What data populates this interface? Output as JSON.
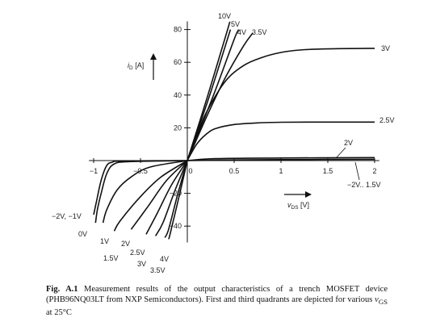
{
  "chart_data": {
    "type": "line",
    "title": "",
    "xlabel": {
      "main": "v",
      "sub": "DS",
      "unit": " [V]"
    },
    "ylabel": {
      "main": "i",
      "sub": "D",
      "unit": " [A]"
    },
    "xlim": [
      -1,
      2
    ],
    "ylim": [
      -50,
      85
    ],
    "x_ticks": [
      -1,
      -0.5,
      0,
      0.5,
      1,
      1.5,
      2
    ],
    "x_tick_labels": [
      "−1",
      "−0.5",
      "0",
      "0.5",
      "1",
      "1.5",
      "2"
    ],
    "y_ticks": [
      -40,
      -20,
      20,
      40,
      60,
      80
    ],
    "y_tick_labels": [
      "−40",
      "−20",
      "20",
      "40",
      "60",
      "80"
    ],
    "grid": false,
    "first_quadrant": [
      {
        "name": "10V",
        "points": [
          [
            0,
            0
          ],
          [
            0.22,
            40
          ],
          [
            0.43,
            80
          ],
          [
            0.45,
            84
          ]
        ]
      },
      {
        "name": "5V",
        "points": [
          [
            0,
            0
          ],
          [
            0.24,
            40
          ],
          [
            0.46,
            80
          ]
        ]
      },
      {
        "name": "4V",
        "points": [
          [
            0,
            0
          ],
          [
            0.28,
            40
          ],
          [
            0.5,
            74
          ],
          [
            0.55,
            80
          ]
        ]
      },
      {
        "name": "3.5V",
        "points": [
          [
            0,
            0
          ],
          [
            0.2,
            26
          ],
          [
            0.4,
            50
          ],
          [
            0.6,
            70
          ],
          [
            0.7,
            78
          ]
        ]
      },
      {
        "name": "3V",
        "points": [
          [
            0,
            0
          ],
          [
            0.1,
            15
          ],
          [
            0.2,
            29
          ],
          [
            0.4,
            48
          ],
          [
            0.6,
            58
          ],
          [
            0.8,
            63
          ],
          [
            1.0,
            66
          ],
          [
            1.2,
            67.5
          ],
          [
            1.5,
            68.2
          ],
          [
            2.0,
            68.5
          ]
        ]
      },
      {
        "name": "2.5V",
        "points": [
          [
            0,
            0
          ],
          [
            0.1,
            10
          ],
          [
            0.2,
            16
          ],
          [
            0.3,
            19.5
          ],
          [
            0.5,
            22
          ],
          [
            0.75,
            23
          ],
          [
            1.0,
            23.4
          ],
          [
            1.5,
            23.5
          ],
          [
            2.0,
            23.5
          ]
        ]
      },
      {
        "name": "2V",
        "points": [
          [
            0,
            0
          ],
          [
            0.3,
            1.2
          ],
          [
            1.0,
            1.6
          ],
          [
            2.0,
            1.8
          ]
        ]
      },
      {
        "name": "−2V.. 1.5V",
        "points": [
          [
            0,
            0
          ],
          [
            0.5,
            0.4
          ],
          [
            1.0,
            0.6
          ],
          [
            2.0,
            0.8
          ]
        ]
      }
    ],
    "third_quadrant": [
      {
        "name": "4V",
        "points": [
          [
            0,
            0
          ],
          [
            -0.08,
            -20
          ],
          [
            -0.18,
            -44
          ],
          [
            -0.2,
            -48
          ]
        ]
      },
      {
        "name": "3.5V",
        "points": [
          [
            0,
            0
          ],
          [
            -0.1,
            -20
          ],
          [
            -0.2,
            -42
          ],
          [
            -0.24,
            -47
          ]
        ]
      },
      {
        "name": "3V",
        "points": [
          [
            0,
            0
          ],
          [
            -0.13,
            -18
          ],
          [
            -0.26,
            -38
          ],
          [
            -0.34,
            -46
          ]
        ]
      },
      {
        "name": "2.5V",
        "points": [
          [
            0,
            0
          ],
          [
            -0.17,
            -15
          ],
          [
            -0.32,
            -32
          ],
          [
            -0.44,
            -45
          ]
        ]
      },
      {
        "name": "2V",
        "points": [
          [
            0,
            0
          ],
          [
            -0.22,
            -12
          ],
          [
            -0.42,
            -28
          ],
          [
            -0.6,
            -42
          ]
        ]
      },
      {
        "name": "1.5V",
        "points": [
          [
            0,
            0
          ],
          [
            -0.28,
            -10
          ],
          [
            -0.5,
            -22
          ],
          [
            -0.72,
            -37
          ],
          [
            -0.78,
            -43
          ]
        ]
      },
      {
        "name": "1V",
        "points": [
          [
            0,
            0
          ],
          [
            -0.4,
            -4
          ],
          [
            -0.6,
            -10
          ],
          [
            -0.75,
            -18
          ],
          [
            -0.86,
            -30
          ],
          [
            -0.9,
            -38
          ]
        ]
      },
      {
        "name": "0V",
        "points": [
          [
            0,
            0
          ],
          [
            -0.6,
            -0.6
          ],
          [
            -0.78,
            -2
          ],
          [
            -0.86,
            -8
          ],
          [
            -0.92,
            -20
          ],
          [
            -0.96,
            -30
          ],
          [
            -0.98,
            -38
          ]
        ]
      },
      {
        "name": "−2V, −1V",
        "points": [
          [
            0,
            0
          ],
          [
            -0.7,
            -0.3
          ],
          [
            -0.8,
            -1
          ],
          [
            -0.86,
            -3
          ],
          [
            -0.92,
            -12
          ],
          [
            -0.97,
            -25
          ],
          [
            -1.0,
            -33
          ]
        ]
      }
    ]
  },
  "caption": {
    "label": "Fig. A.1",
    "text1": " Measurement results of the output characteristics of a trench MOSFET device (PHB96NQ03LT from NXP Semiconductors). First and third quadrants are depicted for various ",
    "v": "v",
    "gs": "GS",
    "text2": " at 25°C"
  }
}
